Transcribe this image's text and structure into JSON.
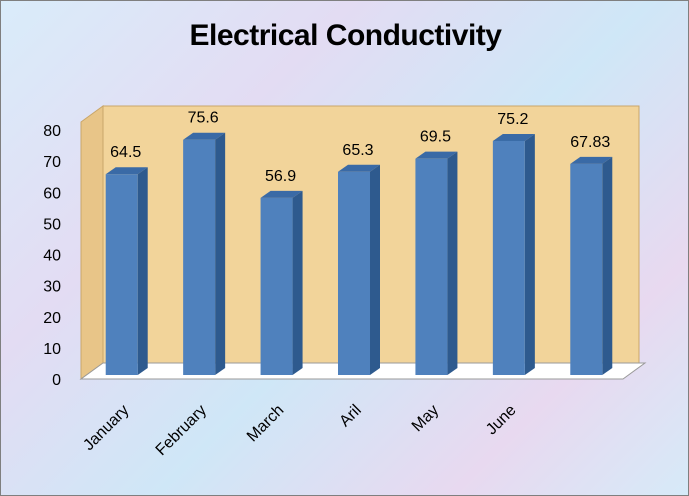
{
  "chart_data": {
    "type": "bar",
    "title": "Electrical Conductivity",
    "categories": [
      "January",
      "February",
      "March",
      "Aril",
      "May",
      "June",
      ""
    ],
    "values": [
      64.5,
      75.6,
      56.9,
      65.3,
      69.5,
      75.2,
      67.83
    ],
    "data_labels": [
      "64.5",
      "75.6",
      "56.9",
      "65.3",
      "69.5",
      "75.2",
      "67.83"
    ],
    "xlabel": "",
    "ylabel": "",
    "ylim": [
      0,
      80
    ],
    "yticks": [
      "0",
      "10",
      "20",
      "30",
      "40",
      "50",
      "60",
      "70",
      "80"
    ],
    "grid": false,
    "legend": "none",
    "style": "3d-column",
    "colors": {
      "bar_front": "#4f81bd",
      "bar_side": "#2e5a8e",
      "bar_top": "#3a6aa6",
      "back_wall": "#f2d49a",
      "side_wall": "#e8c588",
      "floor": "#ffffff"
    }
  }
}
